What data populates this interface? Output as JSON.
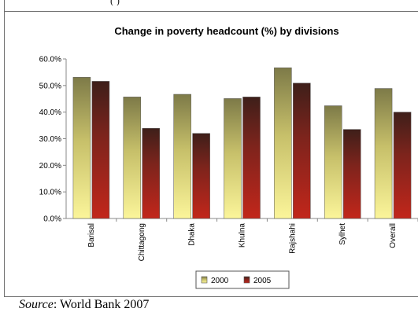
{
  "header_fragment": "(  )",
  "source": {
    "label": "Source",
    "text": ": World Bank 2007"
  },
  "chart_data": {
    "type": "bar",
    "title": "Change in poverty headcount (%) by divisions",
    "categories": [
      "Barisal",
      "Chittagong",
      "Dhaka",
      "Khulna",
      "Rajshahi",
      "Sylhet",
      "Overall"
    ],
    "series": [
      {
        "name": "2000",
        "values": [
          53.1,
          45.7,
          46.7,
          45.1,
          56.7,
          42.4,
          48.9
        ],
        "color": "#e8e07a"
      },
      {
        "name": "2005",
        "values": [
          51.6,
          33.9,
          32.0,
          45.7,
          50.9,
          33.5,
          40.0
        ],
        "color": "#8f1f1a"
      }
    ],
    "ylim": [
      0,
      60
    ],
    "yticks": [
      "0.0%",
      "10.0%",
      "20.0%",
      "30.0%",
      "40.0%",
      "50.0%",
      "60.0%"
    ],
    "xlabel": "",
    "ylabel": "",
    "grid": false,
    "legend_position": "bottom"
  }
}
